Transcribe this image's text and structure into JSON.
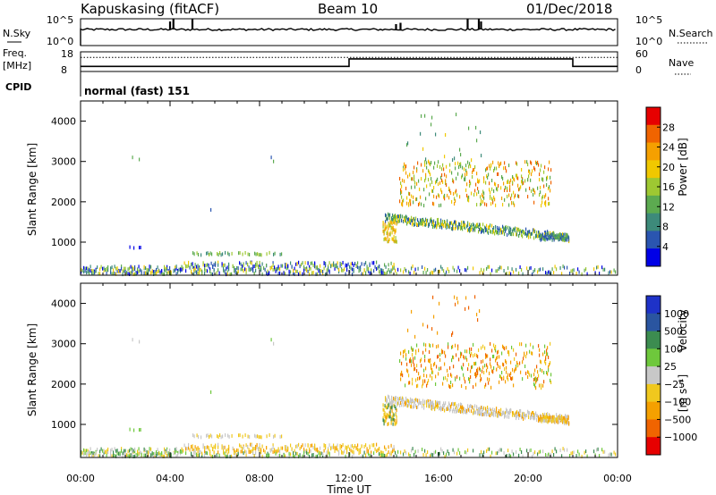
{
  "header": {
    "station": "Kapuskasing (fitACF)",
    "beam": "Beam 10",
    "date": "01/Dec/2018"
  },
  "colors": {
    "trace": "#000000",
    "velocity_ground": "#c8c8c8"
  },
  "chart_data": [
    {
      "type": "line",
      "name": "noise-panel",
      "left_label": "N.Sky",
      "right_label": "N.Search",
      "left_ticks": [
        "10^5",
        "10^0"
      ],
      "right_ticks": [
        "10^5",
        "10^0"
      ],
      "baseline_level": 0.6,
      "spikes": [
        {
          "x": 4.0,
          "y": 0.9
        },
        {
          "x": 4.15,
          "y": 1.0
        },
        {
          "x": 5.0,
          "y": 1.0
        },
        {
          "x": 14.1,
          "y": 0.8
        },
        {
          "x": 14.3,
          "y": 0.85
        },
        {
          "x": 17.3,
          "y": 1.0
        },
        {
          "x": 17.8,
          "y": 1.0
        },
        {
          "x": 17.9,
          "y": 0.9
        }
      ]
    },
    {
      "type": "line",
      "name": "freq-panel",
      "left_label_top": "Freq.",
      "left_label_bottom": "[MHz]",
      "left_ticks": [
        "18",
        "8"
      ],
      "right_label": "Nave",
      "right_ticks": [
        "60",
        "0"
      ],
      "frequency_steps": [
        {
          "x": 0,
          "y": 10.6
        },
        {
          "x": 12.0,
          "y": 10.6
        },
        {
          "x": 12.0,
          "y": 14.4
        },
        {
          "x": 22.0,
          "y": 14.4
        },
        {
          "x": 22.0,
          "y": 10.6
        },
        {
          "x": 24.0,
          "y": 10.6
        }
      ],
      "nave_dotted": 43
    },
    {
      "type": "text",
      "name": "cpid-panel",
      "label": "CPID",
      "text": "normal (fast) 151"
    },
    {
      "type": "heatmap",
      "name": "power",
      "ylabel": "Slant Range [km]",
      "ylim": [
        180,
        4500
      ],
      "yticks": [
        1000,
        2000,
        3000,
        4000
      ],
      "colorbar_label": "Power [dB]",
      "colorbar_ticks": [
        4,
        8,
        12,
        16,
        20,
        24,
        28
      ],
      "colorbar_range": [
        0,
        32
      ],
      "colors": [
        "#0000e6",
        "#2a55b0",
        "#3d8a7a",
        "#5caa50",
        "#9ec832",
        "#f0c800",
        "#f5a000",
        "#f06400",
        "#e60000"
      ]
    },
    {
      "type": "heatmap",
      "name": "velocity",
      "ylabel": "Slant Range [km]",
      "ylim": [
        180,
        4500
      ],
      "yticks": [
        1000,
        2000,
        3000,
        4000
      ],
      "xticks": [
        "00:00",
        "04:00",
        "08:00",
        "12:00",
        "16:00",
        "20:00",
        "00:00"
      ],
      "xlabel": "Time UT",
      "colorbar_label": "Velocity",
      "colorbar_unit": "[m s⁻¹]",
      "colorbar_ticks": [
        "1000",
        "500",
        "100",
        "25",
        "−25",
        "−100",
        "−500",
        "−1000"
      ],
      "colors": [
        "#1e32c8",
        "#2a55a0",
        "#3c8c50",
        "#6ec83c",
        "#c8c8c8",
        "#f0c81e",
        "#f5a000",
        "#f06400",
        "#e60000"
      ]
    }
  ]
}
